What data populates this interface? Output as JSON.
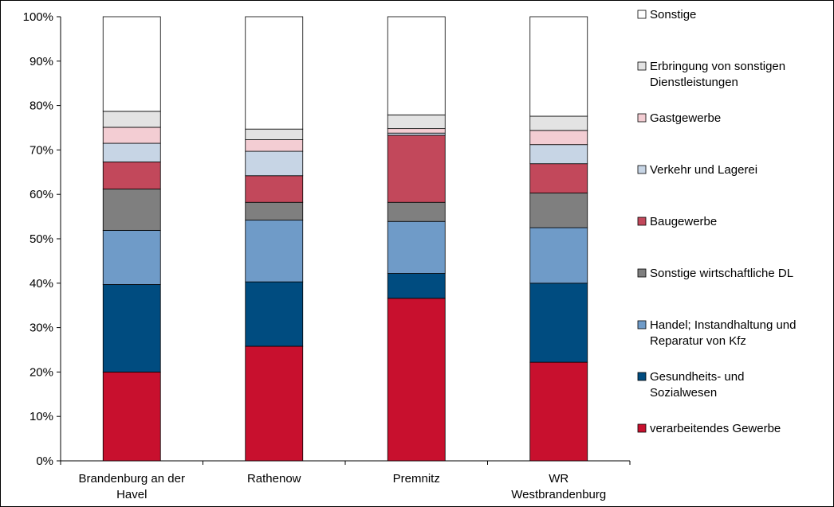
{
  "chart_data": {
    "type": "bar",
    "stacked": true,
    "percent": true,
    "categories": [
      [
        "Brandenburg an der",
        "Havel"
      ],
      [
        "Rathenow"
      ],
      [
        "Premnitz"
      ],
      [
        "WR",
        "Westbrandenburg"
      ]
    ],
    "ylim": [
      0,
      100
    ],
    "yticks": [
      "0%",
      "10%",
      "20%",
      "30%",
      "40%",
      "50%",
      "60%",
      "70%",
      "80%",
      "90%",
      "100%"
    ],
    "series": [
      {
        "name": [
          "verarbeitendes Gewerbe"
        ],
        "color": "#c8102e",
        "values": [
          20.0,
          25.8,
          36.6,
          22.2
        ]
      },
      {
        "name": [
          "Gesundheits- und",
          "Sozialwesen"
        ],
        "color": "#004c80",
        "values": [
          19.7,
          14.5,
          5.6,
          17.8
        ]
      },
      {
        "name": [
          "Handel; Instandhaltung und",
          "Reparatur von Kfz"
        ],
        "color": "#6f9bc8",
        "values": [
          12.2,
          13.9,
          11.7,
          12.5
        ]
      },
      {
        "name": [
          "Sonstige wirtschaftliche DL"
        ],
        "color": "#7f7f7f",
        "values": [
          9.3,
          4.0,
          4.3,
          7.8
        ]
      },
      {
        "name": [
          "Baugewerbe"
        ],
        "color": "#c2485b",
        "values": [
          6.1,
          6.0,
          15.1,
          6.6
        ]
      },
      {
        "name": [
          "Verkehr und Lagerei"
        ],
        "color": "#c7d5e5",
        "values": [
          4.2,
          5.5,
          0.5,
          4.3
        ]
      },
      {
        "name": [
          "Gastgewerbe"
        ],
        "color": "#f3cdd3",
        "values": [
          3.6,
          2.6,
          1.0,
          3.2
        ]
      },
      {
        "name": [
          "Erbringung von sonstigen",
          "Dienstleistungen"
        ],
        "color": "#e3e3e3",
        "values": [
          3.6,
          2.4,
          3.1,
          3.2
        ]
      },
      {
        "name": [
          "Sonstige"
        ],
        "color": "#ffffff",
        "values": [
          21.3,
          25.3,
          22.1,
          22.4
        ]
      }
    ],
    "legend_position": "right"
  }
}
